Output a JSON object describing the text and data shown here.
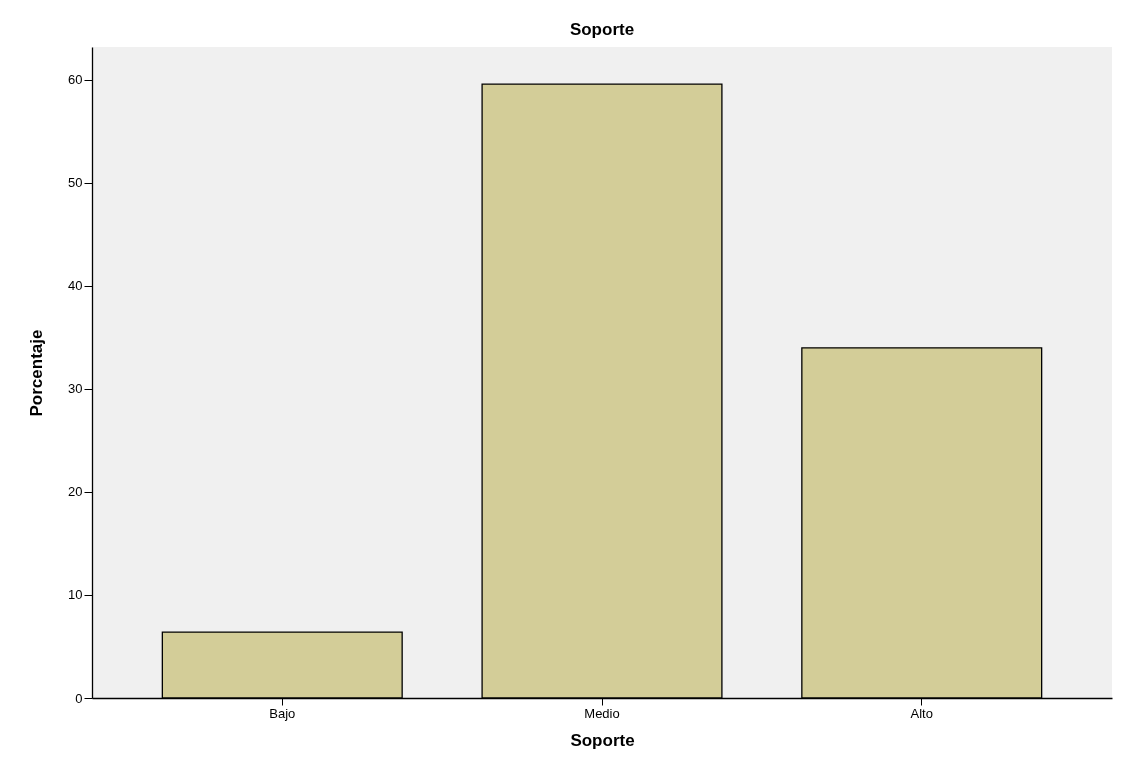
{
  "chart_data": {
    "type": "bar",
    "title": "Soporte",
    "xlabel": "Soporte",
    "ylabel": "Porcentaje",
    "categories": [
      "Bajo",
      "Medio",
      "Alto"
    ],
    "values": [
      6.4,
      59.6,
      34.0
    ],
    "color": "#d3cd98",
    "ylim": [
      0,
      63.2
    ],
    "yticks": [
      0,
      10,
      20,
      30,
      40,
      50,
      60
    ],
    "grid": false
  }
}
